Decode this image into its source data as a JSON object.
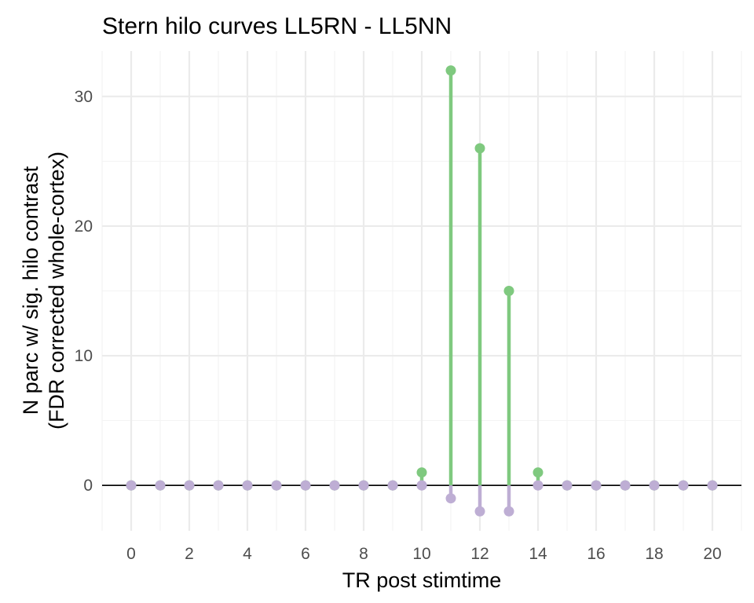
{
  "chart_data": {
    "type": "lollipop",
    "title": "Stern hilo curves LL5RN - LL5NN",
    "xlabel": "TR post stimtime",
    "ylabel_line1": "N parc w/ sig. hilo contrast",
    "ylabel_line2": "(FDR corrected whole-cortex)",
    "x_ticks": [
      0,
      2,
      4,
      6,
      8,
      10,
      12,
      14,
      16,
      18,
      20
    ],
    "y_ticks": [
      0,
      10,
      20,
      30
    ],
    "xlim": [
      -1,
      21
    ],
    "ylim": [
      -3.5,
      33.5
    ],
    "grid": true,
    "series": [
      {
        "color": "#7fc97f",
        "x": [
          0,
          1,
          2,
          3,
          4,
          5,
          6,
          7,
          8,
          9,
          10,
          11,
          12,
          13,
          14,
          15,
          16,
          17,
          18,
          19,
          20
        ],
        "y": [
          0,
          0,
          0,
          0,
          0,
          0,
          0,
          0,
          0,
          0,
          1,
          32,
          26,
          15,
          1,
          0,
          0,
          0,
          0,
          0,
          0
        ]
      },
      {
        "color": "#beaed4",
        "x": [
          0,
          1,
          2,
          3,
          4,
          5,
          6,
          7,
          8,
          9,
          10,
          11,
          12,
          13,
          14,
          15,
          16,
          17,
          18,
          19,
          20
        ],
        "y": [
          0,
          0,
          0,
          0,
          0,
          0,
          0,
          0,
          0,
          0,
          0,
          -1,
          -2,
          -2,
          0,
          0,
          0,
          0,
          0,
          0,
          0
        ]
      }
    ]
  }
}
